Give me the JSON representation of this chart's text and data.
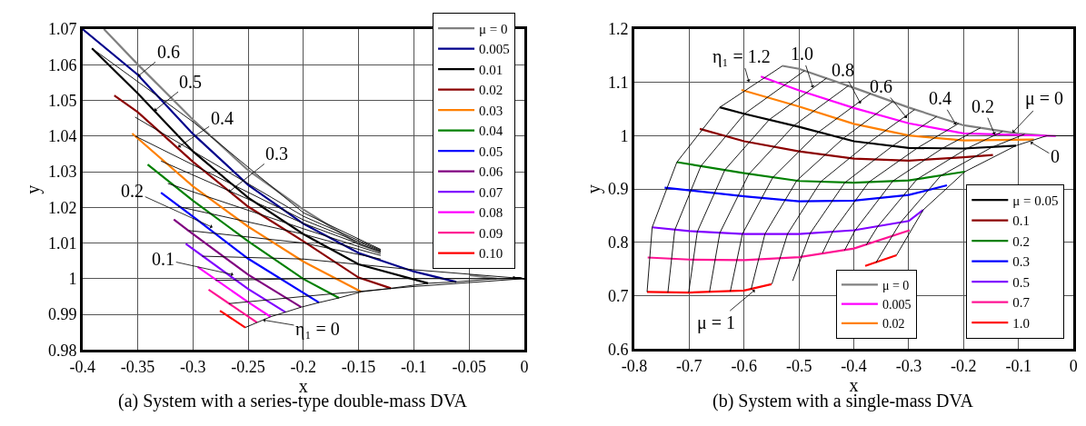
{
  "chart_data": [
    {
      "type": "line",
      "title": "(a) System with a series-type double-mass DVA",
      "xlabel": "x",
      "ylabel": "y",
      "xlim": [
        -0.4,
        0
      ],
      "xticks": [
        -0.4,
        -0.35,
        -0.3,
        -0.25,
        -0.2,
        -0.15,
        -0.1,
        -0.05,
        0
      ],
      "ylim": [
        0.98,
        1.07
      ],
      "yticks": [
        0.98,
        0.99,
        1,
        1.01,
        1.02,
        1.03,
        1.04,
        1.05,
        1.06,
        1.07
      ],
      "grid": true,
      "legend": "top right",
      "annotations": [
        {
          "text": "0.6",
          "x": -0.3496,
          "y": 1.0568
        },
        {
          "text": "0.5",
          "x": -0.3348,
          "y": 1.0471
        },
        {
          "text": "0.4",
          "x": -0.3133,
          "y": 1.0369
        },
        {
          "text": "0.3",
          "x": -0.2675,
          "y": 1.0243
        },
        {
          "text": "0.2",
          "x": -0.2823,
          "y": 1.0144
        },
        {
          "text": "0.1",
          "x": -0.2634,
          "y": 1.0011
        },
        {
          "text": "η₁ = 0",
          "x": -0.2365,
          "y": 0.9884
        }
      ],
      "series": [
        {
          "name": "μ = 0",
          "color": "#808080",
          "x": [
            -0.3806,
            -0.35,
            -0.3,
            -0.25,
            -0.2,
            -0.15,
            -0.13,
            -0.1,
            -0.05,
            -0.025
          ],
          "values": [
            1.07,
            1.0601,
            1.0446,
            1.0304,
            1.0194,
            1.0097,
            1.0075,
            null,
            1.001,
            1.0
          ]
        },
        {
          "name": "0.005",
          "color": "#00008b",
          "x": [
            -0.4,
            -0.35,
            -0.3,
            -0.25,
            -0.2,
            -0.15,
            -0.1,
            -0.0615
          ],
          "values": [
            1.07,
            1.0572,
            1.0406,
            1.0263,
            1.0154,
            1.0072,
            1.002,
            0.9991
          ]
        },
        {
          "name": "0.01",
          "color": "#000000",
          "x": [
            -0.3914,
            -0.35,
            -0.3,
            -0.25,
            -0.2,
            -0.15,
            -0.0871
          ],
          "values": [
            1.0646,
            1.052,
            1.0357,
            1.0227,
            1.0125,
            1.004,
            0.9987
          ]
        },
        {
          "name": "0.02",
          "color": "#8b0000",
          "x": [
            -0.3712,
            -0.35,
            -0.3,
            -0.25,
            -0.2,
            -0.15,
            -0.1208
          ],
          "values": [
            1.0514,
            1.0467,
            1.0328,
            1.0202,
            1.0105,
            1.0003,
            0.9973
          ]
        },
        {
          "name": "0.03",
          "color": "#ff8000",
          "x": [
            -0.355,
            -0.3,
            -0.25,
            -0.2,
            -0.1476
          ],
          "values": [
            1.0407,
            1.0259,
            1.0146,
            1.0048,
            0.9963
          ]
        },
        {
          "name": "0.04",
          "color": "#008000",
          "x": [
            -0.341,
            -0.3,
            -0.25,
            -0.2,
            -0.1678
          ],
          "values": [
            1.032,
            1.0219,
            1.0105,
            0.9999,
            0.9946
          ]
        },
        {
          "name": "0.05",
          "color": "#0000ff",
          "x": [
            -0.3289,
            -0.3,
            -0.25,
            -0.1858
          ],
          "values": [
            1.0241,
            1.0174,
            1.0056,
            0.9933
          ]
        },
        {
          "name": "0.06",
          "color": "#800080",
          "x": [
            -0.3173,
            -0.3,
            -0.25,
            -0.202
          ],
          "values": [
            1.0166,
            1.0125,
            1.0011,
            0.992
          ]
        },
        {
          "name": "0.07",
          "color": "#8000ff",
          "x": [
            -0.3065,
            -0.25,
            -0.2163
          ],
          "values": [
            1.0098,
            0.9971,
            0.9906
          ]
        },
        {
          "name": "0.08",
          "color": "#ff00ff",
          "x": [
            -0.2957,
            -0.25,
            -0.2297
          ],
          "values": [
            1.0033,
            0.9934,
            0.9893
          ]
        },
        {
          "name": "0.09",
          "color": "#ff1493",
          "x": [
            -0.2858,
            -0.2419
          ],
          "values": [
            0.9969,
            0.9877
          ]
        },
        {
          "name": "0.10",
          "color": "#ff0000",
          "x": [
            -0.2755,
            -0.2526
          ],
          "values": [
            0.991,
            0.9863
          ]
        },
        {
          "color": "#000000",
          "x": [
            -0.2526,
            -0.2419,
            -0.2297,
            -0.2163,
            -0.202,
            -0.1858,
            -0.1678,
            -0.1476,
            -0.1208,
            -0.0871,
            -0.0615,
            -0.025,
            0
          ],
          "values": [
            0.9863,
            0.9877,
            0.9893,
            0.9906,
            0.992,
            0.9933,
            0.9946,
            0.9963,
            0.9973,
            0.9987,
            0.9991,
            1.0,
            1.0
          ]
        },
        {
          "color": "#000000",
          "x": [
            -0.2675,
            -0.2,
            -0.1,
            0
          ],
          "values": [
            0.993,
            0.995,
            0.9978,
            1.0
          ]
        },
        {
          "color": "#000000",
          "x": [
            -0.2796,
            -0.2,
            -0.1,
            0
          ],
          "values": [
            0.9995,
            1.0,
            1.0,
            1.0
          ]
        },
        {
          "color": "#000000",
          "x": [
            -0.2917,
            -0.2,
            -0.1,
            0
          ],
          "values": [
            1.0063,
            1.0055,
            1.0025,
            1.0
          ]
        },
        {
          "color": "#000000",
          "x": [
            -0.3038,
            -0.2,
            -0.13,
            -0.1,
            -0.01,
            0
          ],
          "values": [
            1.0135,
            1.01,
            1.0055,
            null,
            1.0004,
            1.0
          ]
        },
        {
          "color": "#000000",
          "x": [
            -0.3132,
            -0.2,
            -0.13,
            -0.1,
            -0.01,
            0
          ],
          "values": [
            1.0202,
            1.0125,
            1.0065,
            null,
            1.0004,
            1.0
          ]
        },
        {
          "color": "#000000",
          "x": [
            -0.3227,
            -0.2,
            -0.13,
            -0.1,
            -0.01,
            0
          ],
          "values": [
            1.0267,
            1.014,
            1.007,
            null,
            1.0004,
            1.0
          ]
        },
        {
          "color": "#000000",
          "x": [
            -0.3289,
            -0.2,
            -0.13,
            -0.1,
            -0.01,
            0
          ],
          "values": [
            1.033,
            1.0155,
            1.0075,
            null,
            1.0004,
            1.0
          ]
        },
        {
          "color": "#000000",
          "x": [
            -0.3523,
            -0.2,
            -0.13,
            -0.1,
            -0.01,
            0
          ],
          "values": [
            1.04,
            1.0165,
            1.0078,
            null,
            1.0004,
            1.0
          ]
        },
        {
          "color": "#000000",
          "x": [
            -0.3523,
            -0.2,
            -0.13,
            -0.1,
            -0.01,
            0
          ],
          "values": [
            1.0453,
            1.0175,
            1.008,
            null,
            1.0004,
            1.0
          ]
        },
        {
          "color": "#000000",
          "x": [
            -0.3914,
            -0.3,
            -0.2,
            -0.13,
            -0.1,
            -0.01,
            0
          ],
          "values": [
            1.0646,
            1.044,
            1.0185,
            1.0082,
            null,
            1.0004,
            1.0
          ]
        }
      ]
    },
    {
      "type": "line",
      "title": "(b) System with a single-mass DVA",
      "xlabel": "x",
      "ylabel": "y",
      "xlim": [
        -0.8,
        0
      ],
      "xticks": [
        -0.8,
        -0.7,
        -0.6,
        -0.5,
        -0.4,
        -0.3,
        -0.2,
        -0.1,
        0
      ],
      "ylim": [
        0.6,
        1.2
      ],
      "yticks": [
        0.6,
        0.7,
        0.8,
        0.9,
        1,
        1.1,
        1.2
      ],
      "grid": true,
      "legend": "bottom right",
      "annotations": [
        {
          "text": "η₁ = 1.2",
          "x": -0.5911,
          "y": 1.1011
        },
        {
          "text": "1.0",
          "x": -0.4744,
          "y": 1.0902
        },
        {
          "text": "0.8",
          "x": -0.3876,
          "y": 1.0603
        },
        {
          "text": "0.6",
          "x": -0.3034,
          "y": 1.0332
        },
        {
          "text": "0.4",
          "x": -0.2139,
          "y": 1.0207
        },
        {
          "text": "0.2",
          "x": -0.1433,
          "y": 1.0022
        },
        {
          "text": "μ = 0",
          "x": -0.1108,
          "y": 1.006
        },
        {
          "text": "0",
          "x": -0.0782,
          "y": 0.988
        },
        {
          "text": "μ = 1",
          "x": -0.5803,
          "y": 0.7109
        }
      ],
      "series": [
        {
          "name": "μ = 0",
          "color": "#808080",
          "x": [
            -0.53,
            -0.5,
            -0.4,
            -0.3,
            -0.2,
            -0.1,
            -0.0485
          ],
          "values": [
            1.131,
            1.1255,
            1.09,
            1.053,
            1.0196,
            1.004,
            1.0
          ]
        },
        {
          "name": "0.005",
          "color": "#ff00ff",
          "x": [
            -0.5694,
            -0.5,
            -0.4,
            -0.3,
            -0.2,
            -0.032
          ],
          "values": [
            1.1109,
            1.085,
            1.052,
            1.0234,
            1.0043,
            0.9995
          ]
        },
        {
          "name": "0.02",
          "color": "#ff8000",
          "x": [
            -0.6047,
            -0.5,
            -0.4,
            -0.3,
            -0.2,
            -0.072
          ],
          "values": [
            1.0859,
            1.0549,
            1.0223,
            1.0005,
            0.9913,
            0.993
          ]
        },
        {
          "name": "μ = 0.05",
          "color": "#000000",
          "x": [
            -0.6443,
            -0.6,
            -0.5,
            -0.4,
            -0.3,
            -0.2,
            -0.1045
          ],
          "values": [
            1.0533,
            1.0413,
            1.0168,
            0.9897,
            0.9772,
            0.9761,
            0.9815
          ]
        },
        {
          "name": "0.1",
          "color": "#8b0000",
          "x": [
            -0.6806,
            -0.6,
            -0.5,
            -0.4,
            -0.3,
            -0.2,
            -0.1466
          ],
          "values": [
            1.013,
            0.9897,
            0.9707,
            0.9571,
            0.9533,
            0.9598,
            0.9641
          ]
        },
        {
          "name": "0.2",
          "color": "#008000",
          "x": [
            -0.7224,
            -0.6,
            -0.5,
            -0.4,
            -0.3,
            -0.1977
          ],
          "values": [
            0.9505,
            0.9299,
            0.9152,
            0.912,
            0.9163,
            0.9326
          ]
        },
        {
          "name": "0.3",
          "color": "#0000ff",
          "x": [
            -0.7447,
            -0.6,
            -0.5,
            -0.4,
            -0.3,
            -0.2303
          ],
          "values": [
            0.9027,
            0.8864,
            0.8772,
            0.8783,
            0.8891,
            0.9071
          ]
        },
        {
          "name": "0.5",
          "color": "#8000ff",
          "x": [
            -0.7674,
            -0.7,
            -0.6,
            -0.5,
            -0.4,
            -0.3,
            -0.2737
          ],
          "values": [
            0.8283,
            0.8212,
            0.8158,
            0.8158,
            0.8228,
            0.8402,
            0.8609
          ]
        },
        {
          "name": "0.7",
          "color": "#ff1493",
          "x": [
            -0.7756,
            -0.7,
            -0.6,
            -0.5,
            -0.4,
            -0.2982
          ],
          "values": [
            0.7717,
            0.7679,
            0.7668,
            0.7723,
            0.7886,
            0.8228
          ]
        },
        {
          "name": "1.0",
          "color": "#ff0000",
          "x": [
            -0.7767,
            -0.7,
            -0.6,
            -0.55,
            -0.45,
            -0.3793,
            -0.3223
          ],
          "values": [
            0.7071,
            0.706,
            0.7098,
            0.7217,
            null,
            0.7559,
            0.7761
          ]
        },
        {
          "color": "#000000",
          "x": [
            -0.53,
            -0.6443,
            -0.7224,
            -0.7674,
            -0.7767
          ],
          "values": [
            1.131,
            1.0533,
            0.9505,
            0.8283,
            0.7071
          ]
        },
        {
          "color": "#000000",
          "x": [
            -0.4899,
            -0.5993,
            -0.6787,
            -0.7263,
            -0.7388
          ],
          "values": [
            1.122,
            1.041,
            0.943,
            0.823,
            0.706
          ]
        },
        {
          "color": "#000000",
          "x": [
            -0.4498,
            -0.5543,
            -0.635,
            -0.6852,
            -0.7009
          ],
          "values": [
            1.108,
            1.03,
            0.936,
            0.82,
            0.706
          ]
        },
        {
          "color": "#000000",
          "x": [
            -0.4097,
            -0.5093,
            -0.5913,
            -0.6441,
            -0.663
          ],
          "values": [
            1.094,
            1.019,
            0.928,
            0.818,
            0.707
          ]
        },
        {
          "color": "#000000",
          "x": [
            -0.3696,
            -0.4643,
            -0.5476,
            -0.603,
            -0.6251
          ],
          "values": [
            1.079,
            1.007,
            0.922,
            0.816,
            0.708
          ]
        },
        {
          "color": "#000000",
          "x": [
            -0.3295,
            -0.4193,
            -0.5039,
            -0.5619,
            -0.5872
          ],
          "values": [
            1.064,
            0.995,
            0.916,
            0.816,
            0.712
          ]
        },
        {
          "color": "#000000",
          "x": [
            -0.2894,
            -0.3743,
            -0.4602,
            -0.5208,
            -0.5493
          ],
          "values": [
            1.049,
            0.986,
            0.914,
            0.816,
            0.722
          ]
        },
        {
          "color": "#000000",
          "x": [
            -0.2493,
            -0.3293,
            -0.4165,
            -0.4797,
            -0.5114
          ],
          "values": [
            1.036,
            0.981,
            0.912,
            0.817,
            0.728
          ]
        },
        {
          "color": "#000000",
          "x": [
            -0.2092,
            -0.2843,
            -0.3728,
            -0.4386,
            -0.4572
          ],
          "values": [
            1.023,
            0.977,
            0.913,
            0.82,
            0.78
          ]
        },
        {
          "color": "#000000",
          "x": [
            -0.1691,
            -0.2393,
            -0.3291,
            -0.3975,
            -0.417
          ],
          "values": [
            1.015,
            0.976,
            0.915,
            0.823,
            0.785
          ]
        },
        {
          "color": "#000000",
          "x": [
            -0.129,
            -0.1943,
            -0.2854,
            -0.3564,
            -0.3776
          ],
          "values": [
            1.008,
            0.976,
            0.918,
            0.83,
            0.795
          ]
        },
        {
          "color": "#000000",
          "x": [
            -0.0889,
            -0.1493,
            -0.2417,
            -0.3153,
            -0.3598
          ],
          "values": [
            1.003,
            0.978,
            0.925,
            0.837,
            0.762
          ]
        },
        {
          "color": "#000000",
          "x": [
            0,
            -0.0485,
            -0.1045,
            -0.1977,
            -0.2737,
            -0.3223
          ],
          "values": [
            1.0,
            1.0,
            0.9815,
            0.9326,
            0.8609,
            0.7761
          ]
        }
      ]
    }
  ]
}
